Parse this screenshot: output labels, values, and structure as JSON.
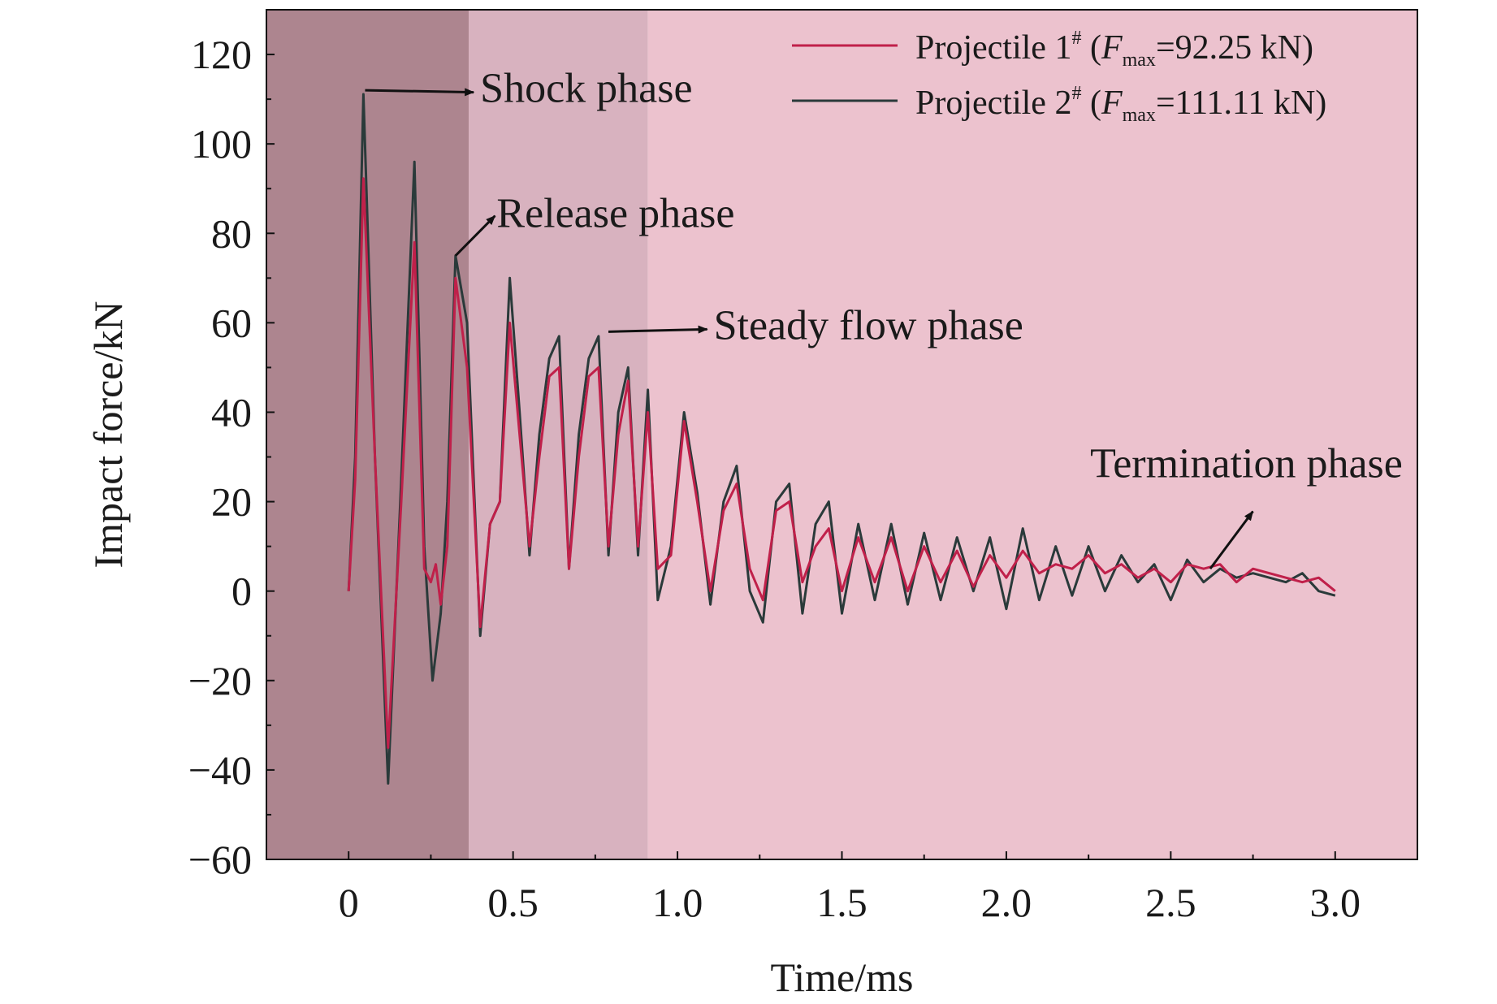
{
  "chart_data": {
    "type": "line",
    "xlabel": "Time/ms",
    "ylabel": "Impact force/kN",
    "xlim": [
      -0.25,
      3.25
    ],
    "ylim": [
      -60,
      130
    ],
    "xticks": [
      0,
      0.5,
      1.0,
      1.5,
      2.0,
      2.5,
      3.0
    ],
    "xtick_labels": [
      "0",
      "0.5",
      "1.0",
      "1.5",
      "2.0",
      "2.5",
      "3.0"
    ],
    "yticks": [
      -60,
      -40,
      -20,
      0,
      20,
      40,
      60,
      80,
      100,
      120
    ],
    "ytick_labels": [
      "−60",
      "−40",
      "−20",
      "0",
      "20",
      "40",
      "60",
      "80",
      "100",
      "120"
    ],
    "grid": false,
    "legend_position": "top-right",
    "phase_regions": [
      {
        "name": "Shock",
        "x_start": -0.25,
        "x_end": 0.365,
        "color": "#ad858f"
      },
      {
        "name": "Release",
        "x_start": 0.365,
        "x_end": 0.91,
        "color": "#d8b2bf"
      },
      {
        "name": "Steady flow / Termination",
        "x_start": 0.91,
        "x_end": 3.25,
        "color": "#ecc2ce"
      }
    ],
    "series": [
      {
        "name": "Projectile 1",
        "legend_name": "Projectile 1",
        "legend_sup": "#",
        "legend_open": " (",
        "legend_var": "F",
        "legend_sub": "max",
        "legend_value": "=92.25 kN)",
        "color": "#c0204a",
        "x": [
          0,
          0.02,
          0.045,
          0.08,
          0.12,
          0.16,
          0.2,
          0.23,
          0.25,
          0.265,
          0.28,
          0.3,
          0.325,
          0.36,
          0.4,
          0.43,
          0.46,
          0.49,
          0.52,
          0.55,
          0.58,
          0.61,
          0.64,
          0.67,
          0.7,
          0.73,
          0.76,
          0.79,
          0.82,
          0.85,
          0.88,
          0.91,
          0.94,
          0.98,
          1.02,
          1.06,
          1.1,
          1.14,
          1.18,
          1.22,
          1.26,
          1.3,
          1.34,
          1.38,
          1.42,
          1.46,
          1.5,
          1.55,
          1.6,
          1.65,
          1.7,
          1.75,
          1.8,
          1.85,
          1.9,
          1.95,
          2.0,
          2.05,
          2.1,
          2.15,
          2.2,
          2.25,
          2.3,
          2.35,
          2.4,
          2.45,
          2.5,
          2.55,
          2.6,
          2.65,
          2.7,
          2.75,
          2.8,
          2.85,
          2.9,
          2.95,
          3.0
        ],
        "y": [
          0,
          25,
          92.25,
          30,
          -35,
          20,
          78,
          5,
          2,
          6,
          -3,
          10,
          70,
          50,
          -8,
          15,
          20,
          60,
          35,
          10,
          30,
          48,
          50,
          5,
          30,
          48,
          50,
          10,
          35,
          47,
          10,
          40,
          5,
          8,
          38,
          20,
          0,
          18,
          24,
          5,
          -2,
          18,
          20,
          2,
          10,
          14,
          0,
          12,
          2,
          12,
          0,
          10,
          2,
          9,
          1,
          8,
          3,
          9,
          4,
          6,
          5,
          8,
          4,
          6,
          3,
          5,
          2,
          6,
          5,
          6,
          2,
          5,
          4,
          3,
          2,
          3,
          0
        ]
      },
      {
        "name": "Projectile 2",
        "legend_name": "Projectile 2",
        "legend_sup": "#",
        "legend_open": " (",
        "legend_var": "F",
        "legend_sub": "max",
        "legend_value": "=111.11 kN)",
        "color": "#2a3a3a",
        "x": [
          0,
          0.02,
          0.045,
          0.08,
          0.12,
          0.16,
          0.2,
          0.23,
          0.255,
          0.28,
          0.3,
          0.325,
          0.36,
          0.4,
          0.43,
          0.46,
          0.49,
          0.52,
          0.55,
          0.58,
          0.61,
          0.64,
          0.67,
          0.7,
          0.73,
          0.76,
          0.79,
          0.82,
          0.85,
          0.88,
          0.91,
          0.94,
          0.98,
          1.02,
          1.06,
          1.1,
          1.14,
          1.18,
          1.22,
          1.26,
          1.3,
          1.34,
          1.38,
          1.42,
          1.46,
          1.5,
          1.55,
          1.6,
          1.65,
          1.7,
          1.75,
          1.8,
          1.85,
          1.9,
          1.95,
          2.0,
          2.05,
          2.1,
          2.15,
          2.2,
          2.25,
          2.3,
          2.35,
          2.4,
          2.45,
          2.5,
          2.55,
          2.6,
          2.65,
          2.7,
          2.75,
          2.8,
          2.85,
          2.9,
          2.95,
          3.0
        ],
        "y": [
          0,
          30,
          111.11,
          30,
          -43,
          25,
          96,
          10,
          -20,
          -5,
          20,
          75,
          60,
          -10,
          15,
          20,
          70,
          40,
          8,
          35,
          52,
          57,
          5,
          35,
          52,
          57,
          8,
          40,
          50,
          8,
          45,
          -2,
          10,
          40,
          22,
          -3,
          20,
          28,
          0,
          -7,
          20,
          24,
          -5,
          15,
          20,
          -5,
          15,
          -2,
          15,
          -3,
          13,
          -2,
          12,
          0,
          12,
          -4,
          14,
          -2,
          10,
          -1,
          10,
          0,
          8,
          2,
          6,
          -2,
          7,
          2,
          5,
          3,
          4,
          3,
          2,
          4,
          0,
          -1
        ]
      }
    ],
    "annotations": [
      {
        "id": "shock",
        "text": "Shock phase",
        "point": [
          0.05,
          112
        ],
        "label_pos": [
          0.4,
          113
        ]
      },
      {
        "id": "release",
        "text": "Release phase",
        "point": [
          0.325,
          75
        ],
        "label_pos": [
          0.45,
          85
        ]
      },
      {
        "id": "steady",
        "text": "Steady flow phase",
        "point": [
          0.79,
          58
        ],
        "label_pos": [
          1.11,
          60
        ]
      },
      {
        "id": "termination",
        "text": "Termination phase",
        "point": [
          2.62,
          5
        ],
        "label_pos": [
          2.73,
          24
        ]
      }
    ]
  }
}
